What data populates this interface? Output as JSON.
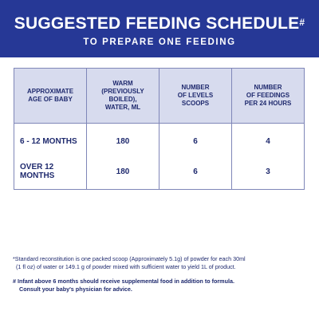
{
  "header": {
    "title": "SUGGESTED FEEDING SCHEDULE",
    "title_mark": "#",
    "subtitle": "TO PREPARE ONE FEEDING"
  },
  "table": {
    "columns": [
      {
        "line1": "APPROXIMATE",
        "line2": "AGE OF BABY",
        "line3": ""
      },
      {
        "line1": "WARM",
        "line2": "(PREVIOUSLY BOILED),",
        "line3": "WATER, ML"
      },
      {
        "line1": "NUMBER",
        "line2": "OF LEVELS",
        "line3": "SCOOPS"
      },
      {
        "line1": "NUMBER",
        "line2": "OF FEEDINGS",
        "line3": "PER 24 HOURS"
      }
    ],
    "rows": [
      {
        "age": "6 - 12 MONTHS",
        "water_ml": "180",
        "scoops": "6",
        "feedings": "4"
      },
      {
        "age": "OVER 12 MONTHS",
        "water_ml": "180",
        "scoops": "6",
        "feedings": "3"
      }
    ]
  },
  "notes": {
    "reconstitution_line1": "*Standard reconstitution is one packed scoop (Approximately 5.1g) of powder for each 30ml",
    "reconstitution_line2": "(1 fl oz) of water or 149.1 g of powder mixed with sufficient water to yield 1L of product.",
    "supplement_line1": "# Infant above 6 months should receive supplemental food in addition to formula.",
    "supplement_line2": "Consult your baby's physician for advice."
  },
  "colors": {
    "banner": "#263896",
    "header_cell": "#d7dbee",
    "text": "#1f2a6e"
  }
}
